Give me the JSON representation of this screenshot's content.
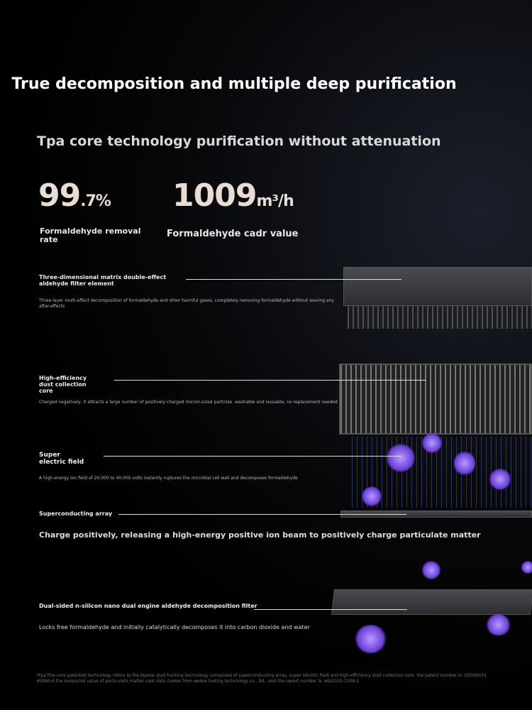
{
  "title": "True decomposition and multiple deep purification",
  "subtitle": "Tpa core technology purification without attenuation",
  "stats": [
    {
      "value": "99",
      "suffix": ".7%",
      "label": "Formaldehyde removal rate"
    },
    {
      "value": "1009",
      "suffix": "m³/h",
      "label": "Formaldehyde cadr value"
    }
  ],
  "features": [
    {
      "heading": "Three-dimensional matrix double-effect aldehyde filter element",
      "desc": "Three-layer multi-effect decomposition of formaldehyde and other harmful gases, completely removing formaldehyde without leaving any after-effects"
    },
    {
      "heading": "High-efficiency dust collection core",
      "desc": "Charged negatively, it attracts a large number of positively charged micron-sized particles. washable and reusable, no replacement needed"
    },
    {
      "heading": "Super electric field",
      "desc": "A high-energy ion field of 20,000 to 40,000 volts instantly ruptures the microbial cell wall and decomposes formaldehyde"
    },
    {
      "heading": "Superconducting array",
      "desc": "Charge positively, releasing a high-energy positive ion beam to positively charge particulate matter"
    },
    {
      "heading": "Dual-sided n-silicon nano dual engine aldehyde decomposition filter",
      "desc": "Locks free formaldehyde and initially catalytically decomposes it into carbon dioxide and water"
    }
  ],
  "footnote": "*tpa?the core patented technology refers to the bipolar dust hunting technology composed of superconducting array, super electric field and high-efficiency dust collection core. the patent number is: zl2008101 65890.6 the measured value of particulate matter cadr data comes from weikai testing technology co., ltd., and the report number is: wts2025-7208-1"
}
